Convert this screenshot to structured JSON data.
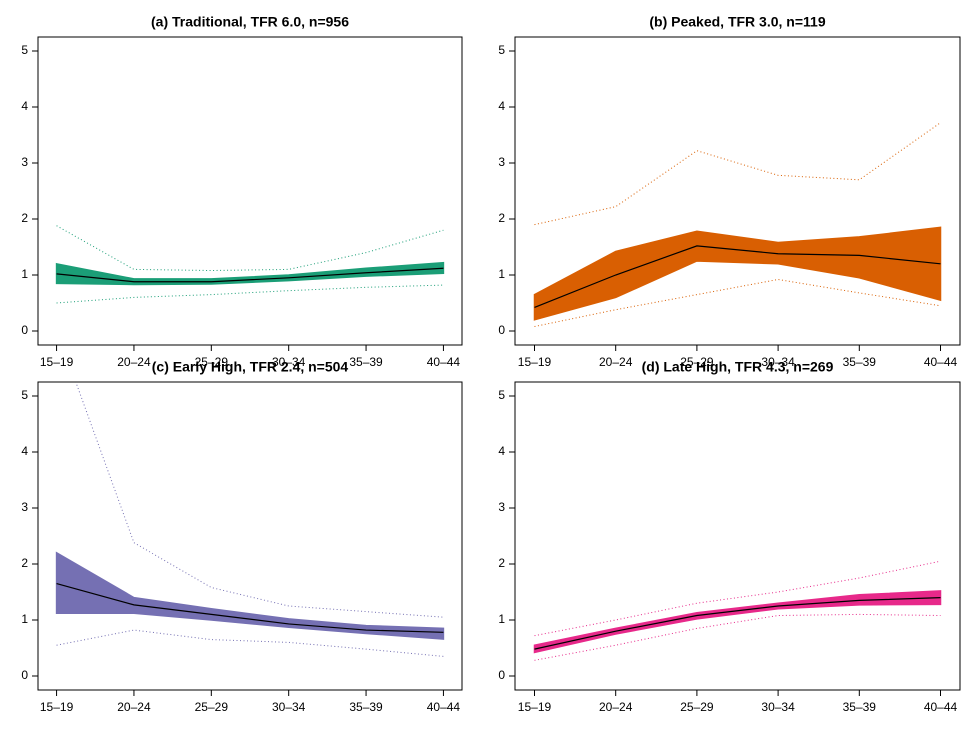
{
  "chart_data": [
    {
      "type": "line",
      "title": "(a) Traditional, TFR 6.0, n=956",
      "categories": [
        "15–19",
        "20–24",
        "25–29",
        "30–34",
        "35–39",
        "40–44"
      ],
      "ylim": [
        -0.25,
        5.25
      ],
      "yticks": [
        0,
        1,
        2,
        3,
        4,
        5
      ],
      "color": "#1b9e77",
      "line": {
        "color": "#000000",
        "values": [
          1.02,
          0.88,
          0.88,
          0.95,
          1.04,
          1.12
        ]
      },
      "band": {
        "lower": [
          0.85,
          0.83,
          0.84,
          0.9,
          0.98,
          1.03
        ],
        "upper": [
          1.2,
          0.93,
          0.93,
          1.0,
          1.12,
          1.22
        ]
      },
      "range": {
        "lower": [
          0.5,
          0.6,
          0.65,
          0.72,
          0.78,
          0.82
        ],
        "upper": [
          1.88,
          1.1,
          1.08,
          1.1,
          1.4,
          1.8
        ]
      }
    },
    {
      "type": "line",
      "title": "(b) Peaked, TFR 3.0, n=119",
      "categories": [
        "15–19",
        "20–24",
        "25–29",
        "30–34",
        "35–39",
        "40–44"
      ],
      "ylim": [
        -0.25,
        5.25
      ],
      "yticks": [
        0,
        1,
        2,
        3,
        4,
        5
      ],
      "color": "#d95f02",
      "line": {
        "color": "#000000",
        "values": [
          0.42,
          1.0,
          1.52,
          1.38,
          1.35,
          1.2
        ]
      },
      "band": {
        "lower": [
          0.2,
          0.6,
          1.25,
          1.2,
          0.95,
          0.55
        ],
        "upper": [
          0.65,
          1.42,
          1.78,
          1.58,
          1.68,
          1.85
        ]
      },
      "range": {
        "lower": [
          0.08,
          0.38,
          0.65,
          0.92,
          0.68,
          0.45
        ],
        "upper": [
          1.9,
          2.22,
          3.22,
          2.78,
          2.7,
          3.72
        ]
      }
    },
    {
      "type": "line",
      "title": "(c) Early High, TFR 2.4, n=504",
      "categories": [
        "15–19",
        "20–24",
        "25–29",
        "30–34",
        "35–39",
        "40–44"
      ],
      "ylim": [
        -0.25,
        5.25
      ],
      "yticks": [
        0,
        1,
        2,
        3,
        4,
        5
      ],
      "color": "#7570b3",
      "line": {
        "color": "#000000",
        "values": [
          1.65,
          1.27,
          1.1,
          0.93,
          0.82,
          0.78
        ]
      },
      "band": {
        "lower": [
          1.12,
          1.12,
          1.0,
          0.87,
          0.76,
          0.66
        ],
        "upper": [
          2.2,
          1.4,
          1.2,
          1.02,
          0.9,
          0.85
        ]
      },
      "range": {
        "lower": [
          0.55,
          0.82,
          0.65,
          0.6,
          0.48,
          0.35
        ],
        "upper": [
          6.2,
          2.38,
          1.58,
          1.25,
          1.15,
          1.05
        ]
      }
    },
    {
      "type": "line",
      "title": "(d) Late High, TFR 4.3, n=269",
      "categories": [
        "15–19",
        "20–24",
        "25–29",
        "30–34",
        "35–39",
        "40–44"
      ],
      "ylim": [
        -0.25,
        5.25
      ],
      "yticks": [
        0,
        1,
        2,
        3,
        4,
        5
      ],
      "color": "#e7298a",
      "line": {
        "color": "#000000",
        "values": [
          0.48,
          0.8,
          1.08,
          1.25,
          1.35,
          1.4
        ]
      },
      "band": {
        "lower": [
          0.42,
          0.75,
          1.02,
          1.2,
          1.27,
          1.28
        ],
        "upper": [
          0.55,
          0.85,
          1.13,
          1.3,
          1.45,
          1.52
        ]
      },
      "range": {
        "lower": [
          0.28,
          0.55,
          0.85,
          1.08,
          1.1,
          1.08
        ],
        "upper": [
          0.72,
          1.0,
          1.3,
          1.5,
          1.75,
          2.05
        ]
      }
    }
  ]
}
